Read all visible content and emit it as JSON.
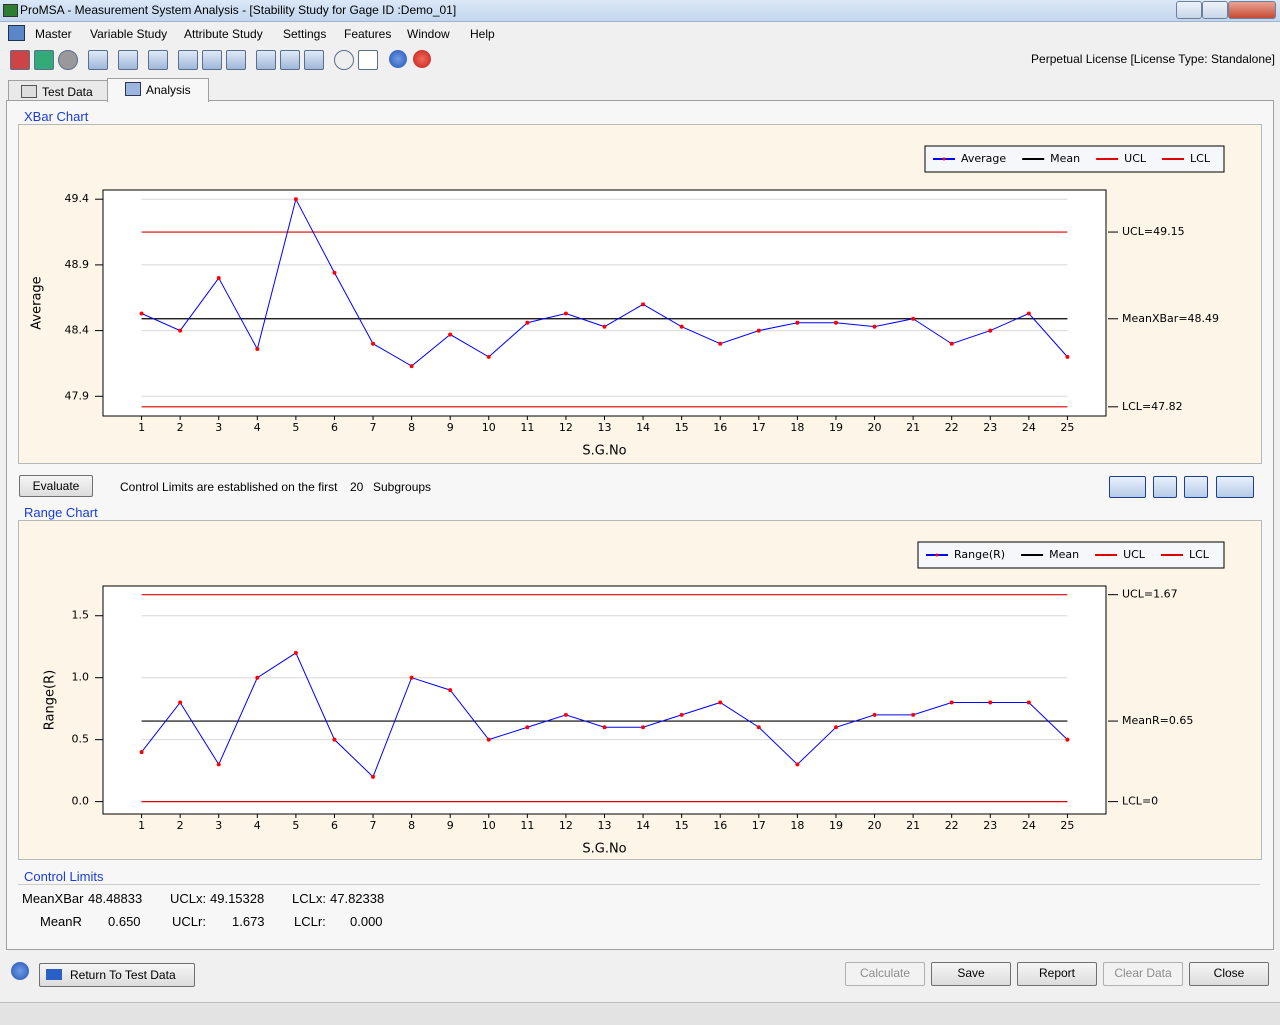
{
  "window_title": "ProMSA - Measurement System Analysis  - [Stability Study for Gage ID :Demo_01]",
  "menu": [
    "Master",
    "Variable Study",
    "Attribute Study",
    "Settings",
    "Features",
    "Window",
    "Help"
  ],
  "license": "Perpetual License [License Type: Standalone]",
  "tabs": [
    "Test Data",
    "Analysis"
  ],
  "evaluate_button": "Evaluate",
  "control_limits_note": {
    "prefix": "Control Limits are established on the first",
    "count": 20,
    "suffix": "Subgroups"
  },
  "chart_data": [
    {
      "type": "line",
      "title": "XBar Chart",
      "xlabel": "S.G.No",
      "ylabel": "Average",
      "x": [
        1,
        2,
        3,
        4,
        5,
        6,
        7,
        8,
        9,
        10,
        11,
        12,
        13,
        14,
        15,
        16,
        17,
        18,
        19,
        20,
        21,
        22,
        23,
        24,
        25
      ],
      "xlim": [
        0,
        26
      ],
      "xticks": [
        1,
        2,
        3,
        4,
        5,
        6,
        7,
        8,
        9,
        10,
        11,
        12,
        13,
        14,
        15,
        16,
        17,
        18,
        19,
        20,
        21,
        22,
        23,
        24,
        25
      ],
      "ylim": [
        47.75,
        49.47
      ],
      "yticks": [
        47.9,
        48.4,
        48.9,
        49.4
      ],
      "grid": true,
      "series": [
        {
          "name": "Average",
          "color": "#0000ff",
          "marker_color": "#ff0000",
          "values": [
            48.53,
            48.4,
            48.8,
            48.26,
            49.4,
            48.84,
            48.3,
            48.13,
            48.37,
            48.2,
            48.46,
            48.53,
            48.43,
            48.6,
            48.43,
            48.3,
            48.4,
            48.46,
            48.46,
            48.43,
            48.49,
            48.3,
            48.4,
            48.53,
            48.2
          ]
        }
      ],
      "limits": [
        {
          "name": "Mean",
          "color": "#000000",
          "value": 48.49,
          "label": "MeanXBar=48.49"
        },
        {
          "name": "UCL",
          "color": "#e00000",
          "value": 49.15,
          "label": "UCL=49.15"
        },
        {
          "name": "LCL",
          "color": "#e00000",
          "value": 47.82,
          "label": "LCL=47.82"
        }
      ]
    },
    {
      "type": "line",
      "title": "Range Chart",
      "xlabel": "S.G.No",
      "ylabel": "Range(R)",
      "x": [
        1,
        2,
        3,
        4,
        5,
        6,
        7,
        8,
        9,
        10,
        11,
        12,
        13,
        14,
        15,
        16,
        17,
        18,
        19,
        20,
        21,
        22,
        23,
        24,
        25
      ],
      "xlim": [
        0,
        26
      ],
      "xticks": [
        1,
        2,
        3,
        4,
        5,
        6,
        7,
        8,
        9,
        10,
        11,
        12,
        13,
        14,
        15,
        16,
        17,
        18,
        19,
        20,
        21,
        22,
        23,
        24,
        25
      ],
      "ylim": [
        -0.1,
        1.74
      ],
      "yticks": [
        {
          "value": 0,
          "label": "0.0"
        },
        0.5,
        {
          "value": 1,
          "label": "1.0"
        },
        1.5
      ],
      "grid": true,
      "series": [
        {
          "name": "Range(R)",
          "color": "#0000ff",
          "marker_color": "#ff0000",
          "values": [
            0.4,
            0.8,
            0.3,
            1.0,
            1.2,
            0.5,
            0.2,
            1.0,
            0.9,
            0.5,
            0.6,
            0.7,
            0.6,
            0.6,
            0.7,
            0.8,
            0.6,
            0.3,
            0.6,
            0.7,
            0.7,
            0.8,
            0.8,
            0.8,
            0.5
          ]
        }
      ],
      "limits": [
        {
          "name": "Mean",
          "color": "#000000",
          "value": 0.65,
          "label": "MeanR=0.65"
        },
        {
          "name": "UCL",
          "color": "#e00000",
          "value": 1.67,
          "label": "UCL=1.67"
        },
        {
          "name": "LCL",
          "color": "#e00000",
          "value": 0,
          "label": "LCL=0"
        }
      ]
    }
  ],
  "control_limits": {
    "title": "Control Limits",
    "rows": [
      [
        {
          "label": "MeanXBar",
          "value": "48.48833"
        },
        {
          "label": "UCLx:",
          "value": "49.15328"
        },
        {
          "label": "LCLx:",
          "value": "47.82338"
        }
      ],
      [
        {
          "label": "MeanR",
          "value": "0.650"
        },
        {
          "label": "UCLr:",
          "value": "1.673"
        },
        {
          "label": "LCLr:",
          "value": "0.000"
        }
      ]
    ]
  },
  "buttons": {
    "return": "Return To Test Data",
    "calculate": "Calculate",
    "save": "Save",
    "report": "Report",
    "clear": "Clear Data",
    "close": "Close"
  }
}
